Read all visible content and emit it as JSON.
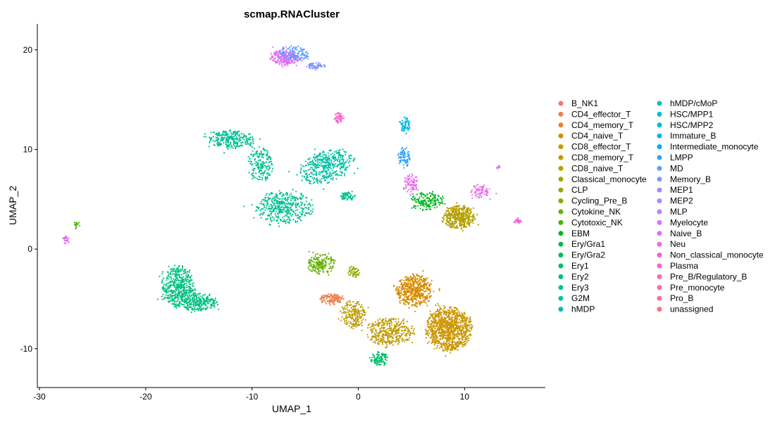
{
  "chart_data": {
    "type": "scatter",
    "title": "scmap.RNACluster",
    "xlabel": "UMAP_1",
    "ylabel": "UMAP_2",
    "xlim": [
      -30.2,
      17.6
    ],
    "ylim": [
      -13.9,
      22.6
    ],
    "xticks": [
      -30,
      -20,
      -10,
      0,
      10
    ],
    "yticks": [
      -10,
      0,
      10,
      20
    ],
    "grid": false,
    "legend_position": "right",
    "legend_columns": 2,
    "series": [
      {
        "name": "B_NK1",
        "color": "#F8766D"
      },
      {
        "name": "CD4_effector_T",
        "color": "#F07E4C"
      },
      {
        "name": "CD4_memory_T",
        "color": "#E4862C"
      },
      {
        "name": "CD4_naive_T",
        "color": "#D78C00"
      },
      {
        "name": "CD8_effector_T",
        "color": "#CC9600"
      },
      {
        "name": "CD8_memory_T",
        "color": "#C09B00"
      },
      {
        "name": "CD8_naive_T",
        "color": "#B3A000"
      },
      {
        "name": "Classical_monocyte",
        "color": "#A4A500"
      },
      {
        "name": "CLP",
        "color": "#93AA00"
      },
      {
        "name": "Cycling_Pre_B",
        "color": "#7EAF00"
      },
      {
        "name": "Cytokine_NK",
        "color": "#66B200"
      },
      {
        "name": "Cytotoxic_NK",
        "color": "#43B500"
      },
      {
        "name": "EBM",
        "color": "#00B81F"
      },
      {
        "name": "Ery/Gra1",
        "color": "#00BA42"
      },
      {
        "name": "Ery/Gra2",
        "color": "#00BC59"
      },
      {
        "name": "Ery1",
        "color": "#00BE6C"
      },
      {
        "name": "Ery2",
        "color": "#00C07F"
      },
      {
        "name": "Ery3",
        "color": "#00C192"
      },
      {
        "name": "G2M",
        "color": "#00C1A3"
      },
      {
        "name": "hMDP",
        "color": "#00C0B5"
      },
      {
        "name": "hMDP/cMoP",
        "color": "#00BFC4"
      },
      {
        "name": "HSC/MPP1",
        "color": "#00BCD4"
      },
      {
        "name": "HSC/MPP2",
        "color": "#00B8E2"
      },
      {
        "name": "Immature_B",
        "color": "#00B3EF"
      },
      {
        "name": "Intermediate_monocyte",
        "color": "#00ACFB"
      },
      {
        "name": "LMPP",
        "color": "#30A3FF"
      },
      {
        "name": "MD",
        "color": "#619CFF"
      },
      {
        "name": "Memory_B",
        "color": "#7E94FF"
      },
      {
        "name": "MEP1",
        "color": "#988CFF"
      },
      {
        "name": "MEP2",
        "color": "#AE86FF"
      },
      {
        "name": "MLP",
        "color": "#C17FFF"
      },
      {
        "name": "Myelocyte",
        "color": "#D277FF"
      },
      {
        "name": "Naive_B",
        "color": "#E06EF6"
      },
      {
        "name": "Neu",
        "color": "#EB67E9"
      },
      {
        "name": "Non_classical_monocyte",
        "color": "#F561DD"
      },
      {
        "name": "Plasma",
        "color": "#FB61CF"
      },
      {
        "name": "Pre_B/Regulatory_B",
        "color": "#FF64B0"
      },
      {
        "name": "Pre_monocyte",
        "color": "#FF69A0"
      },
      {
        "name": "Pro_B",
        "color": "#FF6C90"
      },
      {
        "name": "unassigned",
        "color": "#FC717F"
      }
    ],
    "clusters": [
      {
        "label": "G2M",
        "cx": -3.0,
        "cy": 8.3,
        "sx": 2.3,
        "sy": 1.4,
        "n": 420,
        "rot": 20
      },
      {
        "label": "Ery3",
        "cx": -12.0,
        "cy": 11.0,
        "sx": 2.0,
        "sy": 0.8,
        "n": 280,
        "rot": -5
      },
      {
        "label": "Ery3",
        "cx": -9.2,
        "cy": 8.5,
        "sx": 1.0,
        "sy": 1.6,
        "n": 180,
        "rot": 0
      },
      {
        "label": "Ery3",
        "cx": -7.0,
        "cy": 4.2,
        "sx": 2.3,
        "sy": 1.4,
        "n": 420,
        "rot": 0
      },
      {
        "label": "Ery2",
        "cx": -17.0,
        "cy": -3.8,
        "sx": 1.3,
        "sy": 1.9,
        "n": 440,
        "rot": 0
      },
      {
        "label": "Ery2",
        "cx": -15.0,
        "cy": -5.3,
        "sx": 1.5,
        "sy": 0.8,
        "n": 250,
        "rot": 0
      },
      {
        "label": "Ery3",
        "cx": -1.0,
        "cy": 5.3,
        "sx": 0.6,
        "sy": 0.4,
        "n": 60,
        "rot": 0
      },
      {
        "label": "Naive_B",
        "cx": -7.0,
        "cy": 19.2,
        "sx": 1.2,
        "sy": 0.7,
        "n": 240,
        "rot": 0
      },
      {
        "label": "MD",
        "cx": -6.0,
        "cy": 19.6,
        "sx": 1.2,
        "sy": 0.7,
        "n": 120,
        "rot": 0
      },
      {
        "label": "Memory_B",
        "cx": -4.0,
        "cy": 18.4,
        "sx": 0.8,
        "sy": 0.3,
        "n": 60,
        "rot": 0
      },
      {
        "label": "Plasma",
        "cx": -1.8,
        "cy": 13.2,
        "sx": 0.4,
        "sy": 0.5,
        "n": 50,
        "rot": 0
      },
      {
        "label": "HSC/MPP2",
        "cx": 4.4,
        "cy": 12.5,
        "sx": 0.4,
        "sy": 0.7,
        "n": 60,
        "rot": 0
      },
      {
        "label": "LMPP",
        "cx": 4.3,
        "cy": 9.2,
        "sx": 0.5,
        "sy": 0.9,
        "n": 80,
        "rot": 0
      },
      {
        "label": "CD8_naive_T",
        "cx": 9.5,
        "cy": 3.2,
        "sx": 1.3,
        "sy": 1.0,
        "n": 420,
        "rot": 0
      },
      {
        "label": "EBM",
        "cx": 6.5,
        "cy": 4.8,
        "sx": 1.4,
        "sy": 0.8,
        "n": 160,
        "rot": 0
      },
      {
        "label": "Neu",
        "cx": 11.5,
        "cy": 5.8,
        "sx": 0.8,
        "sy": 0.6,
        "n": 70,
        "rot": 0
      },
      {
        "label": "Neu",
        "cx": 5.0,
        "cy": 6.5,
        "sx": 0.6,
        "sy": 0.9,
        "n": 80,
        "rot": 0
      },
      {
        "label": "Non_classical_monocyte",
        "cx": 15.0,
        "cy": 2.8,
        "sx": 0.3,
        "sy": 0.25,
        "n": 25,
        "rot": 0
      },
      {
        "label": "CD8_effector_T",
        "cx": 8.5,
        "cy": -8.0,
        "sx": 1.9,
        "sy": 1.9,
        "n": 1000,
        "rot": 0
      },
      {
        "label": "CD4_naive_T",
        "cx": 5.3,
        "cy": -4.2,
        "sx": 1.5,
        "sy": 1.4,
        "n": 500,
        "rot": 0
      },
      {
        "label": "CD8_memory_T",
        "cx": 3.0,
        "cy": -8.3,
        "sx": 2.0,
        "sy": 1.2,
        "n": 380,
        "rot": 0
      },
      {
        "label": "CD8_memory_T",
        "cx": -0.5,
        "cy": -6.5,
        "sx": 1.0,
        "sy": 1.2,
        "n": 200,
        "rot": 0
      },
      {
        "label": "CD4_effector_T",
        "cx": -2.5,
        "cy": -5.0,
        "sx": 1.0,
        "sy": 0.5,
        "n": 120,
        "rot": 0
      },
      {
        "label": "Cytokine_NK",
        "cx": -3.5,
        "cy": -1.5,
        "sx": 1.1,
        "sy": 0.9,
        "n": 180,
        "rot": 0
      },
      {
        "label": "CLP",
        "cx": -0.5,
        "cy": -2.3,
        "sx": 0.6,
        "sy": 0.5,
        "n": 50,
        "rot": 0
      },
      {
        "label": "Ery1",
        "cx": 2.0,
        "cy": -11.0,
        "sx": 0.7,
        "sy": 0.6,
        "n": 100,
        "rot": 0
      },
      {
        "label": "Naive_B",
        "cx": -27.5,
        "cy": 1.0,
        "sx": 0.25,
        "sy": 0.35,
        "n": 25,
        "rot": 0
      },
      {
        "label": "Cytotoxic_NK",
        "cx": -26.5,
        "cy": 2.4,
        "sx": 0.35,
        "sy": 0.35,
        "n": 15,
        "rot": 0
      },
      {
        "label": "MLP",
        "cx": 13.2,
        "cy": 8.2,
        "sx": 0.15,
        "sy": 0.2,
        "n": 12,
        "rot": 0
      }
    ]
  }
}
